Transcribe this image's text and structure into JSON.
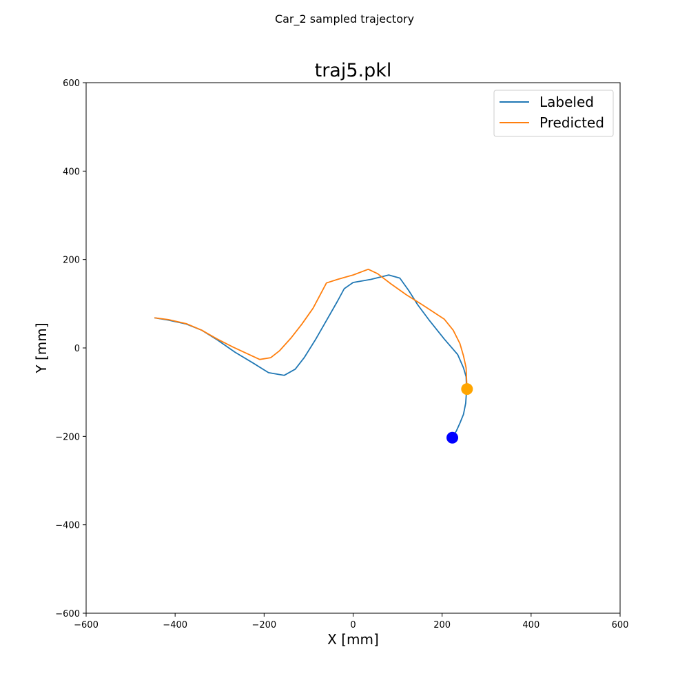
{
  "figure": {
    "suptitle": "Car_2 sampled trajectory"
  },
  "chart_data": {
    "type": "line",
    "title": "traj5.pkl",
    "xlabel": "X [mm]",
    "ylabel": "Y [mm]",
    "xlim": [
      -600,
      600
    ],
    "ylim": [
      -600,
      600
    ],
    "xticks": [
      -600,
      -400,
      -200,
      0,
      200,
      400,
      600
    ],
    "yticks": [
      -600,
      -400,
      -200,
      0,
      200,
      400,
      600
    ],
    "xtick_labels": [
      "−600",
      "−400",
      "−200",
      "0",
      "200",
      "400",
      "600"
    ],
    "ytick_labels": [
      "−600",
      "−400",
      "−200",
      "0",
      "200",
      "400",
      "600"
    ],
    "grid": false,
    "legend_position": "top-right",
    "series": [
      {
        "name": "Labeled",
        "color": "#1f77b4",
        "x": [
          -445,
          -415,
          -375,
          -340,
          -305,
          -265,
          -225,
          -190,
          -155,
          -130,
          -110,
          -85,
          -60,
          -35,
          -20,
          0,
          40,
          80,
          105,
          125,
          145,
          170,
          205,
          235,
          248,
          254,
          255,
          253,
          248,
          240,
          232,
          222
        ],
        "y": [
          68,
          63,
          54,
          40,
          18,
          -10,
          -34,
          -56,
          -62,
          -48,
          -22,
          18,
          62,
          106,
          134,
          148,
          155,
          165,
          158,
          130,
          98,
          64,
          20,
          -15,
          -45,
          -65,
          -95,
          -125,
          -150,
          -170,
          -188,
          -203
        ]
      },
      {
        "name": "Predicted",
        "color": "#ff7f0e",
        "x": [
          -445,
          -415,
          -375,
          -340,
          -305,
          -270,
          -240,
          -210,
          -185,
          -165,
          -140,
          -115,
          -90,
          -60,
          -35,
          0,
          34,
          55,
          85,
          120,
          155,
          205,
          225,
          240,
          248,
          254,
          256
        ],
        "y": [
          68,
          64,
          55,
          40,
          20,
          2,
          -12,
          -26,
          -22,
          -6,
          22,
          54,
          90,
          147,
          155,
          165,
          178,
          168,
          145,
          120,
          98,
          65,
          40,
          10,
          -18,
          -45,
          -93
        ]
      }
    ],
    "markers": [
      {
        "label": "Labeled endpoint",
        "x": 223,
        "y": -203,
        "color": "#0000ff"
      },
      {
        "label": "Predicted endpoint",
        "x": 256,
        "y": -93,
        "color": "#ffa500"
      }
    ]
  }
}
